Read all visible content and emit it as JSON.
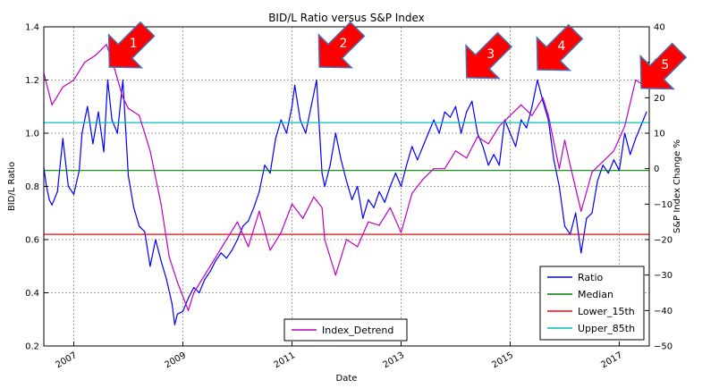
{
  "chart_data": {
    "type": "line",
    "title": "BID/L Ratio versus S&P Index",
    "xlabel": "Date",
    "ylabel": "BID/L Ratio",
    "ylabel_right": "S&P Index Change %",
    "xlim": [
      2006.45,
      2017.55
    ],
    "ylim": [
      0.2,
      1.4
    ],
    "ylim_right": [
      -50,
      40
    ],
    "x_ticks": [
      2007,
      2009,
      2011,
      2013,
      2015,
      2017
    ],
    "x_tick_labels": [
      "2007",
      "2009",
      "2011",
      "2013",
      "2015",
      "2017"
    ],
    "y_ticks": [
      0.2,
      0.4,
      0.6,
      0.8,
      1.0,
      1.2,
      1.4
    ],
    "y_tick_labels": [
      "0.2",
      "0.4",
      "0.6",
      "0.8",
      "1.0",
      "1.2",
      "1.4"
    ],
    "y_ticks_right": [
      -50,
      -40,
      -30,
      -20,
      -10,
      0,
      10,
      20,
      30,
      40
    ],
    "y_tick_labels_right": [
      "−50",
      "−40",
      "−30",
      "−20",
      "−10",
      "0",
      "10",
      "20",
      "30",
      "40"
    ],
    "grid": true,
    "legend_placement": "lower right",
    "legend2_placement": "lower center",
    "series": [
      {
        "name": "Ratio",
        "color": "#0000ff",
        "axis": "left",
        "x": [
          2006.45,
          2006.5,
          2006.55,
          2006.6,
          2006.7,
          2006.8,
          2006.9,
          2007.0,
          2007.1,
          2007.15,
          2007.25,
          2007.35,
          2007.45,
          2007.55,
          2007.62,
          2007.7,
          2007.8,
          2007.9,
          2008.0,
          2008.1,
          2008.2,
          2008.3,
          2008.4,
          2008.5,
          2008.6,
          2008.7,
          2008.8,
          2008.85,
          2008.9,
          2009.0,
          2009.1,
          2009.2,
          2009.3,
          2009.4,
          2009.5,
          2009.6,
          2009.7,
          2009.8,
          2009.9,
          2010.0,
          2010.1,
          2010.2,
          2010.3,
          2010.4,
          2010.5,
          2010.6,
          2010.7,
          2010.8,
          2010.9,
          2011.0,
          2011.05,
          2011.15,
          2011.25,
          2011.35,
          2011.45,
          2011.55,
          2011.6,
          2011.7,
          2011.8,
          2011.9,
          2012.0,
          2012.1,
          2012.2,
          2012.3,
          2012.4,
          2012.5,
          2012.6,
          2012.7,
          2012.8,
          2012.9,
          2013.0,
          2013.1,
          2013.2,
          2013.3,
          2013.4,
          2013.5,
          2013.6,
          2013.7,
          2013.8,
          2013.9,
          2014.0,
          2014.1,
          2014.2,
          2014.3,
          2014.4,
          2014.5,
          2014.6,
          2014.7,
          2014.8,
          2014.9,
          2015.0,
          2015.1,
          2015.2,
          2015.3,
          2015.4,
          2015.5,
          2015.6,
          2015.7,
          2015.8,
          2015.9,
          2016.0,
          2016.1,
          2016.2,
          2016.3,
          2016.4,
          2016.5,
          2016.6,
          2016.7,
          2016.8,
          2016.9,
          2017.0,
          2017.1,
          2017.2,
          2017.3,
          2017.4,
          2017.5
        ],
        "y": [
          0.87,
          0.8,
          0.75,
          0.73,
          0.78,
          0.98,
          0.8,
          0.77,
          0.86,
          1.0,
          1.1,
          0.96,
          1.08,
          0.93,
          1.2,
          1.05,
          1.0,
          1.2,
          0.84,
          0.72,
          0.65,
          0.63,
          0.5,
          0.6,
          0.52,
          0.45,
          0.36,
          0.28,
          0.32,
          0.33,
          0.38,
          0.42,
          0.4,
          0.45,
          0.48,
          0.52,
          0.55,
          0.53,
          0.56,
          0.6,
          0.65,
          0.67,
          0.72,
          0.78,
          0.88,
          0.85,
          0.98,
          1.05,
          1.0,
          1.1,
          1.18,
          1.05,
          1.0,
          1.1,
          1.2,
          0.85,
          0.8,
          0.88,
          1.0,
          0.9,
          0.82,
          0.75,
          0.8,
          0.68,
          0.75,
          0.72,
          0.78,
          0.74,
          0.8,
          0.85,
          0.8,
          0.88,
          0.95,
          0.9,
          0.95,
          1.0,
          1.05,
          1.0,
          1.08,
          1.06,
          1.1,
          1.0,
          1.08,
          1.12,
          1.0,
          0.95,
          0.88,
          0.92,
          0.88,
          1.05,
          1.0,
          0.95,
          1.05,
          1.02,
          1.1,
          1.2,
          1.12,
          1.05,
          0.9,
          0.8,
          0.65,
          0.62,
          0.7,
          0.55,
          0.68,
          0.7,
          0.82,
          0.88,
          0.85,
          0.9,
          0.86,
          1.0,
          0.92,
          0.98,
          1.03,
          1.08
        ]
      },
      {
        "name": "Median",
        "color": "#008000",
        "axis": "left",
        "x": [
          2006.45,
          2017.55
        ],
        "y": [
          0.86,
          0.86
        ]
      },
      {
        "name": "Lower_15th",
        "color": "#ff0000",
        "axis": "left",
        "x": [
          2006.45,
          2017.55
        ],
        "y": [
          0.62,
          0.62
        ]
      },
      {
        "name": "Upper_85th",
        "color": "#00bfbf",
        "axis": "left",
        "x": [
          2006.45,
          2017.55
        ],
        "y": [
          1.04,
          1.04
        ]
      },
      {
        "name": "Index_Detrend",
        "color": "#bf00bf",
        "axis": "right",
        "x": [
          2006.45,
          2006.6,
          2006.8,
          2007.0,
          2007.2,
          2007.4,
          2007.6,
          2007.75,
          2007.9,
          2008.0,
          2008.2,
          2008.4,
          2008.6,
          2008.75,
          2008.9,
          2009.1,
          2009.2,
          2009.4,
          2009.6,
          2009.8,
          2010.0,
          2010.2,
          2010.4,
          2010.6,
          2010.8,
          2011.0,
          2011.2,
          2011.4,
          2011.55,
          2011.6,
          2011.8,
          2012.0,
          2012.2,
          2012.4,
          2012.6,
          2012.8,
          2013.0,
          2013.2,
          2013.4,
          2013.6,
          2013.8,
          2014.0,
          2014.2,
          2014.4,
          2014.6,
          2014.8,
          2015.0,
          2015.2,
          2015.4,
          2015.6,
          2015.7,
          2015.9,
          2016.0,
          2016.1,
          2016.3,
          2016.5,
          2016.7,
          2016.9,
          2017.1,
          2017.3,
          2017.5
        ],
        "y": [
          27,
          18,
          23,
          25,
          30,
          32,
          35,
          28,
          20,
          17,
          15,
          5,
          -10,
          -25,
          -32,
          -40,
          -35,
          -30,
          -25,
          -20,
          -15,
          -22,
          -12,
          -23,
          -18,
          -10,
          -14,
          -8,
          -11,
          -20,
          -30,
          -20,
          -22,
          -15,
          -16,
          -11,
          -18,
          -7,
          -3,
          0,
          0,
          5,
          3,
          9,
          7,
          12,
          15,
          18,
          15,
          20,
          15,
          0,
          8,
          1,
          -12,
          -1,
          2,
          5,
          12,
          25,
          23
        ]
      }
    ],
    "annotations": [
      {
        "label": "1",
        "x": 2008.0,
        "y": 1.32,
        "color": "#ff0000"
      },
      {
        "label": "2",
        "x": 2011.85,
        "y": 1.32,
        "color": "#ff0000"
      },
      {
        "label": "3",
        "x": 2014.55,
        "y": 1.28,
        "color": "#ff0000"
      },
      {
        "label": "4",
        "x": 2015.85,
        "y": 1.31,
        "color": "#ff0000"
      },
      {
        "label": "5",
        "x": 2017.75,
        "y": 1.24,
        "color": "#ff0000"
      }
    ]
  }
}
